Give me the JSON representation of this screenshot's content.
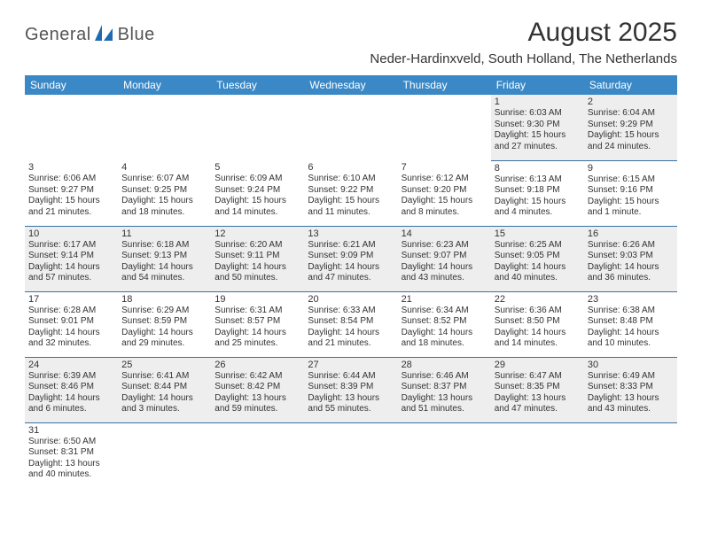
{
  "brand": {
    "part1": "General",
    "part2": "Blue"
  },
  "title": "August 2025",
  "location": "Neder-Hardinxveld, South Holland, The Netherlands",
  "headers": [
    "Sunday",
    "Monday",
    "Tuesday",
    "Wednesday",
    "Thursday",
    "Friday",
    "Saturday"
  ],
  "colors": {
    "header_bg": "#3a88c6",
    "header_fg": "#ffffff",
    "row_border": "#3a6fa5",
    "alt_row_bg": "#eeeeee",
    "logo_blue": "#1f6bb0"
  },
  "weeks": [
    [
      null,
      null,
      null,
      null,
      null,
      {
        "n": "1",
        "sr": "Sunrise: 6:03 AM",
        "ss": "Sunset: 9:30 PM",
        "dl": "Daylight: 15 hours and 27 minutes."
      },
      {
        "n": "2",
        "sr": "Sunrise: 6:04 AM",
        "ss": "Sunset: 9:29 PM",
        "dl": "Daylight: 15 hours and 24 minutes."
      }
    ],
    [
      {
        "n": "3",
        "sr": "Sunrise: 6:06 AM",
        "ss": "Sunset: 9:27 PM",
        "dl": "Daylight: 15 hours and 21 minutes."
      },
      {
        "n": "4",
        "sr": "Sunrise: 6:07 AM",
        "ss": "Sunset: 9:25 PM",
        "dl": "Daylight: 15 hours and 18 minutes."
      },
      {
        "n": "5",
        "sr": "Sunrise: 6:09 AM",
        "ss": "Sunset: 9:24 PM",
        "dl": "Daylight: 15 hours and 14 minutes."
      },
      {
        "n": "6",
        "sr": "Sunrise: 6:10 AM",
        "ss": "Sunset: 9:22 PM",
        "dl": "Daylight: 15 hours and 11 minutes."
      },
      {
        "n": "7",
        "sr": "Sunrise: 6:12 AM",
        "ss": "Sunset: 9:20 PM",
        "dl": "Daylight: 15 hours and 8 minutes."
      },
      {
        "n": "8",
        "sr": "Sunrise: 6:13 AM",
        "ss": "Sunset: 9:18 PM",
        "dl": "Daylight: 15 hours and 4 minutes."
      },
      {
        "n": "9",
        "sr": "Sunrise: 6:15 AM",
        "ss": "Sunset: 9:16 PM",
        "dl": "Daylight: 15 hours and 1 minute."
      }
    ],
    [
      {
        "n": "10",
        "sr": "Sunrise: 6:17 AM",
        "ss": "Sunset: 9:14 PM",
        "dl": "Daylight: 14 hours and 57 minutes."
      },
      {
        "n": "11",
        "sr": "Sunrise: 6:18 AM",
        "ss": "Sunset: 9:13 PM",
        "dl": "Daylight: 14 hours and 54 minutes."
      },
      {
        "n": "12",
        "sr": "Sunrise: 6:20 AM",
        "ss": "Sunset: 9:11 PM",
        "dl": "Daylight: 14 hours and 50 minutes."
      },
      {
        "n": "13",
        "sr": "Sunrise: 6:21 AM",
        "ss": "Sunset: 9:09 PM",
        "dl": "Daylight: 14 hours and 47 minutes."
      },
      {
        "n": "14",
        "sr": "Sunrise: 6:23 AM",
        "ss": "Sunset: 9:07 PM",
        "dl": "Daylight: 14 hours and 43 minutes."
      },
      {
        "n": "15",
        "sr": "Sunrise: 6:25 AM",
        "ss": "Sunset: 9:05 PM",
        "dl": "Daylight: 14 hours and 40 minutes."
      },
      {
        "n": "16",
        "sr": "Sunrise: 6:26 AM",
        "ss": "Sunset: 9:03 PM",
        "dl": "Daylight: 14 hours and 36 minutes."
      }
    ],
    [
      {
        "n": "17",
        "sr": "Sunrise: 6:28 AM",
        "ss": "Sunset: 9:01 PM",
        "dl": "Daylight: 14 hours and 32 minutes."
      },
      {
        "n": "18",
        "sr": "Sunrise: 6:29 AM",
        "ss": "Sunset: 8:59 PM",
        "dl": "Daylight: 14 hours and 29 minutes."
      },
      {
        "n": "19",
        "sr": "Sunrise: 6:31 AM",
        "ss": "Sunset: 8:57 PM",
        "dl": "Daylight: 14 hours and 25 minutes."
      },
      {
        "n": "20",
        "sr": "Sunrise: 6:33 AM",
        "ss": "Sunset: 8:54 PM",
        "dl": "Daylight: 14 hours and 21 minutes."
      },
      {
        "n": "21",
        "sr": "Sunrise: 6:34 AM",
        "ss": "Sunset: 8:52 PM",
        "dl": "Daylight: 14 hours and 18 minutes."
      },
      {
        "n": "22",
        "sr": "Sunrise: 6:36 AM",
        "ss": "Sunset: 8:50 PM",
        "dl": "Daylight: 14 hours and 14 minutes."
      },
      {
        "n": "23",
        "sr": "Sunrise: 6:38 AM",
        "ss": "Sunset: 8:48 PM",
        "dl": "Daylight: 14 hours and 10 minutes."
      }
    ],
    [
      {
        "n": "24",
        "sr": "Sunrise: 6:39 AM",
        "ss": "Sunset: 8:46 PM",
        "dl": "Daylight: 14 hours and 6 minutes."
      },
      {
        "n": "25",
        "sr": "Sunrise: 6:41 AM",
        "ss": "Sunset: 8:44 PM",
        "dl": "Daylight: 14 hours and 3 minutes."
      },
      {
        "n": "26",
        "sr": "Sunrise: 6:42 AM",
        "ss": "Sunset: 8:42 PM",
        "dl": "Daylight: 13 hours and 59 minutes."
      },
      {
        "n": "27",
        "sr": "Sunrise: 6:44 AM",
        "ss": "Sunset: 8:39 PM",
        "dl": "Daylight: 13 hours and 55 minutes."
      },
      {
        "n": "28",
        "sr": "Sunrise: 6:46 AM",
        "ss": "Sunset: 8:37 PM",
        "dl": "Daylight: 13 hours and 51 minutes."
      },
      {
        "n": "29",
        "sr": "Sunrise: 6:47 AM",
        "ss": "Sunset: 8:35 PM",
        "dl": "Daylight: 13 hours and 47 minutes."
      },
      {
        "n": "30",
        "sr": "Sunrise: 6:49 AM",
        "ss": "Sunset: 8:33 PM",
        "dl": "Daylight: 13 hours and 43 minutes."
      }
    ],
    [
      {
        "n": "31",
        "sr": "Sunrise: 6:50 AM",
        "ss": "Sunset: 8:31 PM",
        "dl": "Daylight: 13 hours and 40 minutes."
      },
      null,
      null,
      null,
      null,
      null,
      null
    ]
  ]
}
